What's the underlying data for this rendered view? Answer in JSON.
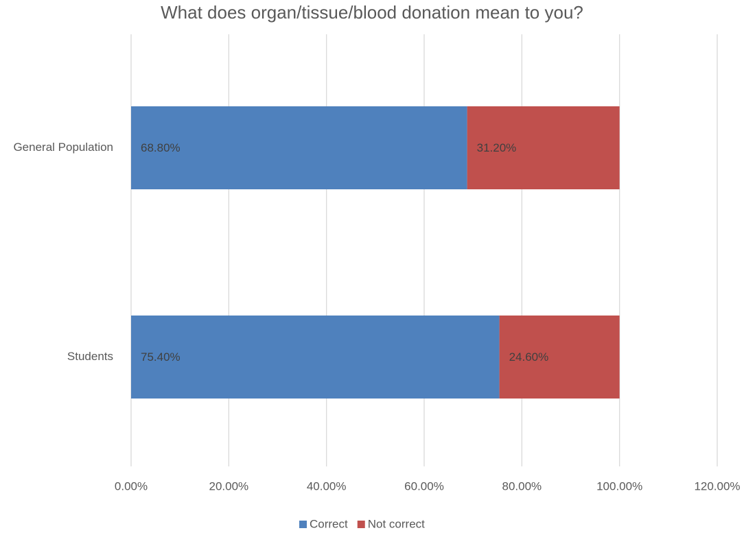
{
  "chart_data": {
    "type": "stacked_barh",
    "title": "What does organ/tissue/blood donation mean to you?",
    "categories": [
      "General Population",
      "Students"
    ],
    "series": [
      {
        "name": "Correct",
        "color": "#4f81bd",
        "values": [
          68.8,
          75.4
        ],
        "value_labels": [
          "68.80%",
          "75.40%"
        ]
      },
      {
        "name": "Not correct",
        "color": "#c0504d",
        "values": [
          31.2,
          24.6
        ],
        "value_labels": [
          "31.20%",
          "24.60%"
        ]
      }
    ],
    "xlim": [
      0,
      120
    ],
    "xticks": [
      {
        "value": 0,
        "label": "0.00%"
      },
      {
        "value": 20,
        "label": "20.00%"
      },
      {
        "value": 40,
        "label": "40.00%"
      },
      {
        "value": 60,
        "label": "60.00%"
      },
      {
        "value": 80,
        "label": "80.00%"
      },
      {
        "value": 100,
        "label": "100.00%"
      },
      {
        "value": 120,
        "label": "120.00%"
      }
    ],
    "grid": true,
    "legend": "bottom"
  }
}
